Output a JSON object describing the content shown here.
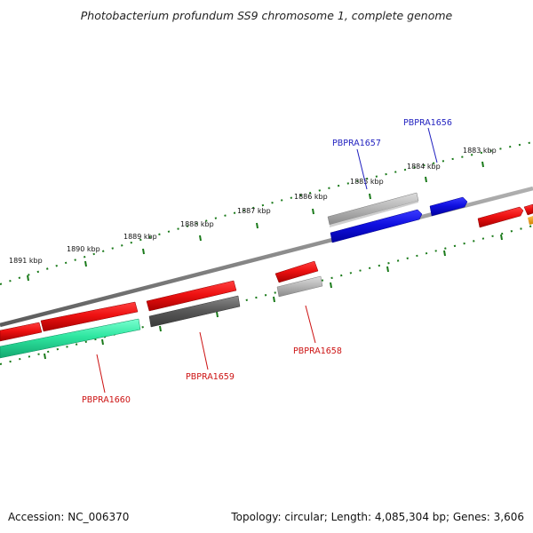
{
  "title": "Photobacterium profundum SS9 chromosome 1, complete genome",
  "footer": {
    "accession": "Accession: NC_006370",
    "summary": "Topology: circular; Length: 4,085,304 bp; Genes: 3,606"
  },
  "ruler": {
    "tick_labels": [
      "1891 kbp",
      "1890 kbp",
      "1889 kbp",
      "1888 kbp",
      "1887 kbp",
      "1886 kbp",
      "1885 kbp",
      "1884 kbp",
      "1883 kbp"
    ]
  },
  "gene_labels": [
    {
      "text": "PBPRA1657",
      "color": "#1f1fbf"
    },
    {
      "text": "PBPRA1656",
      "color": "#1f1fbf"
    },
    {
      "text": "PBPRA1658",
      "color": "#cc1111"
    },
    {
      "text": "PBPRA1659",
      "color": "#cc1111"
    },
    {
      "text": "PBPRA1660",
      "color": "#cc1111"
    }
  ],
  "colors": {
    "backbone": "#8a8a8a",
    "tick": "#1a7a1a",
    "red": "#e8141c",
    "blue": "#1414e6",
    "light_gray": "#b4b4b4",
    "dark_gray": "#5a5a5a",
    "teal": "#2ee6a0",
    "orange": "#f0a020"
  }
}
